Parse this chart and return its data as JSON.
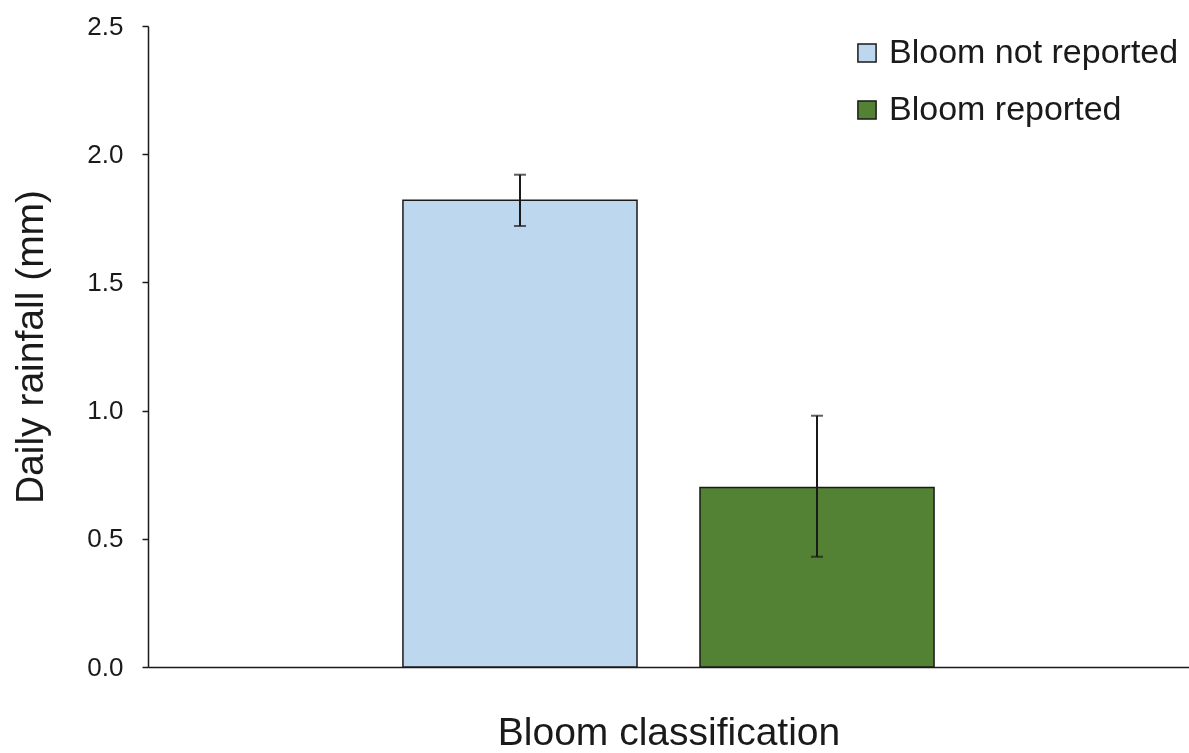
{
  "chart_data": {
    "type": "bar",
    "xlabel": "Bloom classification",
    "ylabel": "Daily rainfall (mm)",
    "categories": [
      null
    ],
    "series": [
      {
        "name": "Bloom not reported",
        "color": "#bdd7ee",
        "values": [
          1.82
        ],
        "errors": [
          0.1
        ]
      },
      {
        "name": "Bloom reported",
        "color": "#548235",
        "values": [
          0.7
        ],
        "errors": [
          [
            0.43,
            0.98
          ]
        ]
      }
    ],
    "ylim": [
      0,
      2.5
    ],
    "yticks": [
      {
        "value": 0,
        "label": "0.0"
      },
      0.5,
      {
        "value": 1,
        "label": "1.0"
      },
      1.5,
      {
        "value": 2,
        "label": "2.0"
      },
      2.5
    ],
    "legend": "top right",
    "tick_labels": "y"
  }
}
